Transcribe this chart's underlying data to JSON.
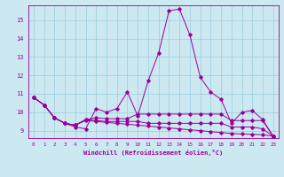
{
  "xlabel": "Windchill (Refroidissement éolien,°C)",
  "bg_color": "#cce8f0",
  "grid_color": "#99ccdd",
  "line_color": "#990099",
  "xlim": [
    -0.5,
    23.5
  ],
  "ylim": [
    8.6,
    15.8
  ],
  "xticks": [
    0,
    1,
    2,
    3,
    4,
    5,
    6,
    7,
    8,
    9,
    10,
    11,
    12,
    13,
    14,
    15,
    16,
    17,
    18,
    19,
    20,
    21,
    22,
    23
  ],
  "yticks": [
    9,
    10,
    11,
    12,
    13,
    14,
    15
  ],
  "lines": [
    [
      10.8,
      10.4,
      9.7,
      9.4,
      9.2,
      9.1,
      10.2,
      10.0,
      10.2,
      11.1,
      9.8,
      11.7,
      13.2,
      15.5,
      15.6,
      14.2,
      11.9,
      11.1,
      10.7,
      9.4,
      10.0,
      10.1,
      9.6,
      8.7
    ],
    [
      10.8,
      10.4,
      9.7,
      9.4,
      9.3,
      9.6,
      9.7,
      9.65,
      9.65,
      9.65,
      9.9,
      9.9,
      9.9,
      9.9,
      9.9,
      9.9,
      9.9,
      9.9,
      9.9,
      9.55,
      9.55,
      9.55,
      9.55,
      8.7
    ],
    [
      10.8,
      10.4,
      9.7,
      9.4,
      9.3,
      9.6,
      9.55,
      9.5,
      9.5,
      9.5,
      9.5,
      9.4,
      9.4,
      9.4,
      9.4,
      9.4,
      9.4,
      9.4,
      9.4,
      9.2,
      9.2,
      9.2,
      9.1,
      8.7
    ],
    [
      10.8,
      10.4,
      9.7,
      9.4,
      9.3,
      9.55,
      9.5,
      9.45,
      9.4,
      9.35,
      9.3,
      9.25,
      9.2,
      9.15,
      9.1,
      9.05,
      9.0,
      8.95,
      8.9,
      8.85,
      8.82,
      8.8,
      8.78,
      8.7
    ]
  ]
}
